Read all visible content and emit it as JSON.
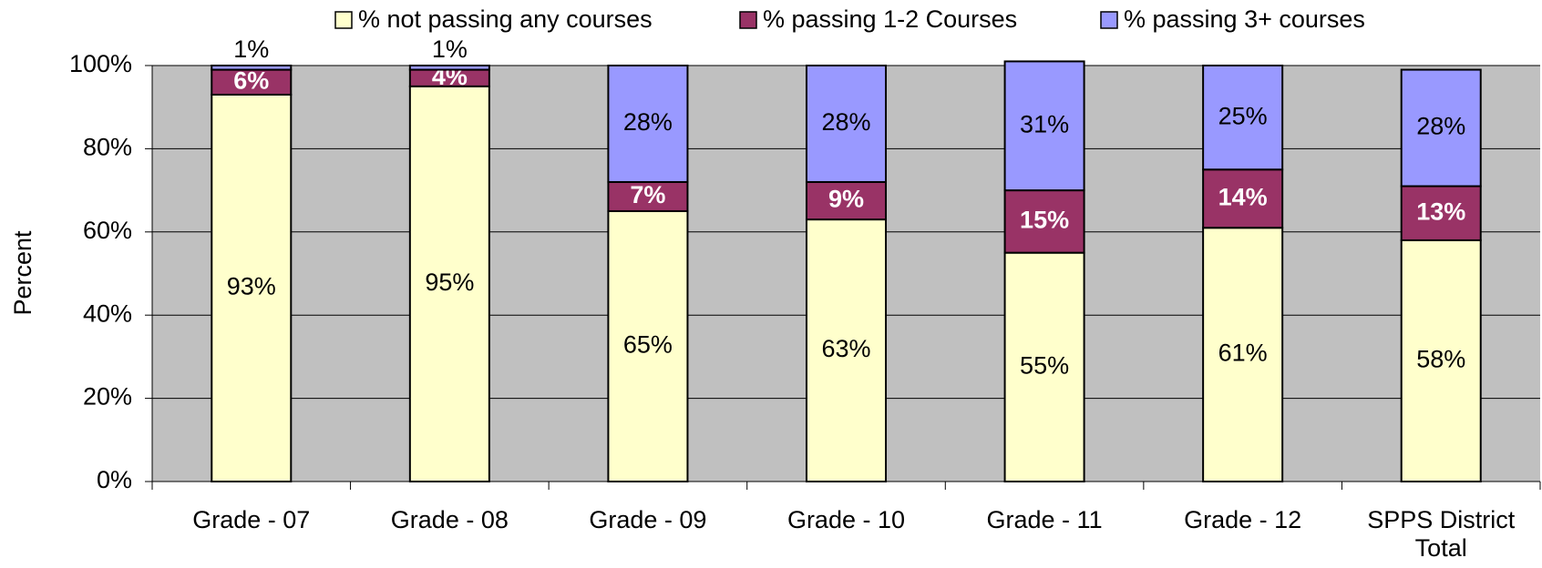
{
  "chart_data": {
    "type": "stacked_bar",
    "y_label": "Percent",
    "categories": [
      "Grade - 07",
      "Grade - 08",
      "Grade - 09",
      "Grade - 10",
      "Grade - 11",
      "Grade - 12",
      "SPPS District Total"
    ],
    "series": [
      {
        "name": "% not passing any courses",
        "color": "#ffffcc",
        "values": [
          93,
          95,
          65,
          63,
          55,
          61,
          58
        ],
        "value_labels": [
          "93%",
          "95%",
          "65%",
          "63%",
          "55%",
          "61%",
          "58%"
        ]
      },
      {
        "name": "% passing 1-2 Courses",
        "color": "#993366",
        "values": [
          6,
          4,
          7,
          9,
          15,
          14,
          13
        ],
        "value_labels": [
          "6%",
          "4%",
          "7%",
          "9%",
          "15%",
          "14%",
          "13%"
        ]
      },
      {
        "name": "% passing 3+ courses",
        "color": "#9999ff",
        "values": [
          1,
          1,
          28,
          28,
          31,
          25,
          28
        ],
        "value_labels": [
          "1%",
          "1%",
          "28%",
          "28%",
          "31%",
          "25%",
          "28%"
        ]
      }
    ],
    "ylim": [
      0,
      100
    ],
    "yticks": [
      {
        "value": 0,
        "label": "0%"
      },
      {
        "value": 20,
        "label": "20%"
      },
      {
        "value": 40,
        "label": "40%"
      },
      {
        "value": 60,
        "label": "60%"
      },
      {
        "value": 80,
        "label": "80%"
      },
      {
        "value": 100,
        "label": "100%"
      }
    ],
    "grid": true,
    "legend": "top",
    "plot_background": "#c0c0c0"
  }
}
